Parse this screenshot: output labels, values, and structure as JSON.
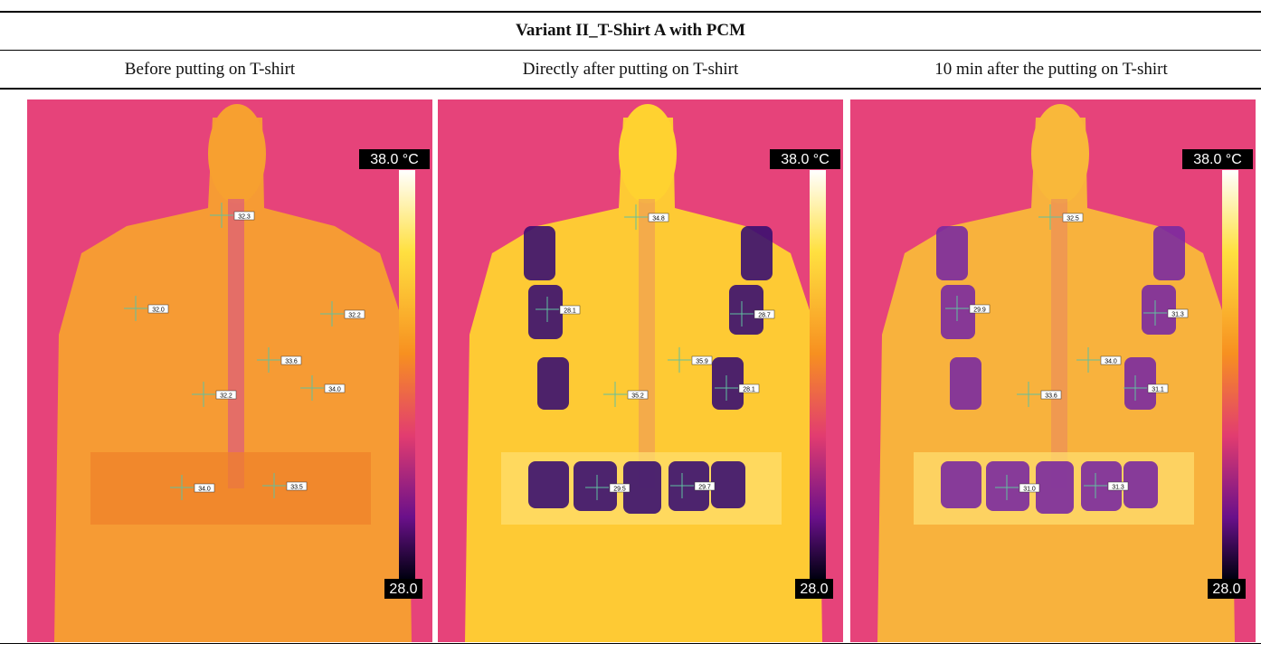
{
  "table": {
    "title": "Variant II_T-Shirt A with PCM",
    "headers": [
      "Before putting on T-shirt",
      "Directly after putting on T-shirt",
      "10 min after the putting on T-shirt"
    ],
    "panels": [
      {
        "scale_max": "38.0 °C",
        "scale_min": "28.0",
        "spots": [
          "32.3",
          "32.0",
          "32.2",
          "33.6",
          "34.0",
          "32.2",
          "34.0",
          "33.5"
        ]
      },
      {
        "scale_max": "38.0 °C",
        "scale_min": "28.0",
        "spots": [
          "34.8",
          "28.1",
          "28.7",
          "35.9",
          "35.2",
          "28.1",
          "29.5",
          "29.7"
        ]
      },
      {
        "scale_max": "38.0 °C",
        "scale_min": "28.0",
        "spots": [
          "32.5",
          "29.9",
          "31.3",
          "34.0",
          "33.6",
          "31.1",
          "31.0",
          "31.3"
        ]
      }
    ]
  }
}
